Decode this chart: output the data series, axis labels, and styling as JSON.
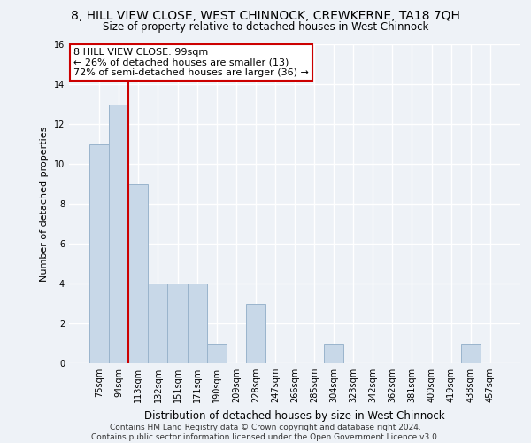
{
  "title": "8, HILL VIEW CLOSE, WEST CHINNOCK, CREWKERNE, TA18 7QH",
  "subtitle": "Size of property relative to detached houses in West Chinnock",
  "xlabel": "Distribution of detached houses by size in West Chinnock",
  "ylabel": "Number of detached properties",
  "bar_color": "#c8d8e8",
  "bar_edge_color": "#9ab4cc",
  "categories": [
    "75sqm",
    "94sqm",
    "113sqm",
    "132sqm",
    "151sqm",
    "171sqm",
    "190sqm",
    "209sqm",
    "228sqm",
    "247sqm",
    "266sqm",
    "285sqm",
    "304sqm",
    "323sqm",
    "342sqm",
    "362sqm",
    "381sqm",
    "400sqm",
    "419sqm",
    "438sqm",
    "457sqm"
  ],
  "values": [
    11,
    13,
    9,
    4,
    4,
    4,
    1,
    0,
    3,
    0,
    0,
    0,
    1,
    0,
    0,
    0,
    0,
    0,
    0,
    1,
    0
  ],
  "ylim": [
    0,
    16
  ],
  "yticks": [
    0,
    2,
    4,
    6,
    8,
    10,
    12,
    14,
    16
  ],
  "vline_x": 1.5,
  "annotation_line1": "8 HILL VIEW CLOSE: 99sqm",
  "annotation_line2": "← 26% of detached houses are smaller (13)",
  "annotation_line3": "72% of semi-detached houses are larger (36) →",
  "annotation_box_color": "#ffffff",
  "annotation_box_edge_color": "#cc0000",
  "vline_color": "#cc0000",
  "footer_line1": "Contains HM Land Registry data © Crown copyright and database right 2024.",
  "footer_line2": "Contains public sector information licensed under the Open Government Licence v3.0.",
  "background_color": "#eef2f7",
  "grid_color": "#ffffff"
}
